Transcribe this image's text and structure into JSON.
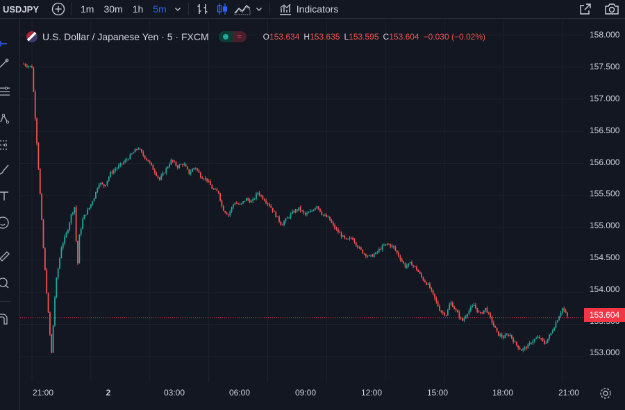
{
  "header": {
    "symbol": "USDJPY",
    "intervals": [
      {
        "label": "1m",
        "active": false
      },
      {
        "label": "30m",
        "active": false
      },
      {
        "label": "1h",
        "active": false
      },
      {
        "label": "5m",
        "active": true
      }
    ],
    "indicators_label": "Indicators"
  },
  "legend": {
    "title": "U.S. Dollar / Japanese Yen · 5 · FXCM",
    "o_key": "O",
    "o_val": "153.634",
    "h_key": "H",
    "h_val": "153.635",
    "l_key": "L",
    "l_val": "153.595",
    "c_key": "C",
    "c_val": "153.604",
    "change": "−0.030 (−0.02%)"
  },
  "price_axis": {
    "ticks": [
      "158.000",
      "157.500",
      "157.000",
      "156.500",
      "156.000",
      "155.500",
      "155.000",
      "154.500",
      "154.000",
      "153.500",
      "153.000"
    ],
    "current_price": "153.604"
  },
  "time_axis": {
    "ticks": [
      {
        "label": "21:00",
        "bold": false
      },
      {
        "label": "2",
        "bold": true
      },
      {
        "label": "03:00",
        "bold": false
      },
      {
        "label": "06:00",
        "bold": false
      },
      {
        "label": "09:00",
        "bold": false
      },
      {
        "label": "12:00",
        "bold": false
      },
      {
        "label": "15:00",
        "bold": false
      },
      {
        "label": "18:00",
        "bold": false
      },
      {
        "label": "21:00",
        "bold": false
      }
    ]
  },
  "colors": {
    "up": "#26a69a",
    "down": "#ef5350",
    "grid": "#1e222d",
    "price_line": "#f23645",
    "active": "#2962ff"
  },
  "chart_data": {
    "type": "candlestick",
    "series": [
      {
        "name": "USDJPY",
        "x_range": [
          "20:30",
          "21:00"
        ],
        "path": [
          [
            -0.5,
            157.55
          ],
          [
            0,
            157.5
          ],
          [
            0.3,
            156.1
          ],
          [
            0.6,
            154.6
          ],
          [
            0.9,
            153.4
          ],
          [
            1.0,
            153.05
          ],
          [
            1.2,
            154.1
          ],
          [
            1.5,
            154.7
          ],
          [
            1.8,
            154.95
          ],
          [
            2.0,
            155.2
          ],
          [
            2.2,
            155.35
          ],
          [
            2.3,
            154.25
          ],
          [
            2.4,
            154.85
          ],
          [
            2.6,
            155.15
          ],
          [
            2.9,
            155.3
          ],
          [
            3.2,
            155.5
          ],
          [
            3.4,
            155.7
          ],
          [
            3.7,
            155.65
          ],
          [
            4.0,
            155.85
          ],
          [
            4.4,
            155.95
          ],
          [
            4.8,
            156.05
          ],
          [
            5.1,
            156.15
          ],
          [
            5.4,
            156.25
          ],
          [
            5.6,
            156.15
          ],
          [
            5.9,
            156.05
          ],
          [
            6.2,
            155.9
          ],
          [
            6.5,
            155.75
          ],
          [
            6.8,
            155.9
          ],
          [
            7.1,
            156.05
          ],
          [
            7.4,
            155.95
          ],
          [
            7.7,
            156.0
          ],
          [
            8.0,
            155.85
          ],
          [
            8.3,
            155.95
          ],
          [
            8.6,
            155.8
          ],
          [
            8.9,
            155.75
          ],
          [
            9.2,
            155.6
          ],
          [
            9.5,
            155.55
          ],
          [
            9.7,
            155.3
          ],
          [
            10.0,
            155.2
          ],
          [
            10.3,
            155.4
          ],
          [
            10.6,
            155.35
          ],
          [
            10.9,
            155.45
          ],
          [
            11.2,
            155.4
          ],
          [
            11.5,
            155.55
          ],
          [
            11.8,
            155.45
          ],
          [
            12.1,
            155.35
          ],
          [
            12.4,
            155.2
          ],
          [
            12.7,
            155.05
          ],
          [
            13.0,
            155.15
          ],
          [
            13.3,
            155.25
          ],
          [
            13.6,
            155.3
          ],
          [
            13.9,
            155.2
          ],
          [
            14.2,
            155.25
          ],
          [
            14.5,
            155.35
          ],
          [
            14.8,
            155.2
          ],
          [
            15.1,
            155.15
          ],
          [
            15.4,
            155.0
          ],
          [
            15.7,
            154.9
          ],
          [
            16.0,
            154.8
          ],
          [
            16.3,
            154.85
          ],
          [
            16.6,
            154.7
          ],
          [
            16.9,
            154.6
          ],
          [
            17.2,
            154.55
          ],
          [
            17.5,
            154.6
          ],
          [
            17.8,
            154.7
          ],
          [
            18.1,
            154.75
          ],
          [
            18.4,
            154.7
          ],
          [
            18.7,
            154.55
          ],
          [
            19.0,
            154.4
          ],
          [
            19.3,
            154.45
          ],
          [
            19.6,
            154.35
          ],
          [
            19.9,
            154.2
          ],
          [
            20.2,
            154.1
          ],
          [
            20.5,
            153.9
          ],
          [
            20.8,
            153.7
          ],
          [
            21.1,
            153.65
          ],
          [
            21.3,
            153.85
          ],
          [
            21.6,
            153.7
          ],
          [
            21.9,
            153.55
          ],
          [
            22.2,
            153.7
          ],
          [
            22.5,
            153.8
          ],
          [
            22.8,
            153.65
          ],
          [
            23.1,
            153.75
          ],
          [
            23.4,
            153.55
          ],
          [
            23.7,
            153.35
          ],
          [
            24.0,
            153.3
          ],
          [
            24.3,
            153.35
          ],
          [
            24.6,
            153.2
          ],
          [
            24.9,
            153.1
          ],
          [
            25.2,
            153.15
          ],
          [
            25.5,
            153.25
          ],
          [
            25.8,
            153.3
          ],
          [
            26.1,
            153.2
          ],
          [
            26.4,
            153.35
          ],
          [
            26.7,
            153.55
          ],
          [
            27.0,
            153.75
          ],
          [
            27.3,
            153.6
          ]
        ]
      }
    ],
    "ylim": [
      152.6,
      158.25
    ],
    "xlim": [
      -0.6,
      28.1
    ],
    "grid": true,
    "legend": "none"
  }
}
